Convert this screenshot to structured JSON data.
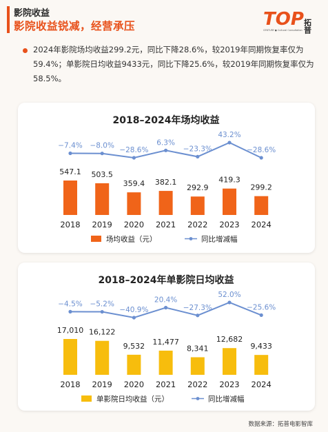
{
  "header": {
    "section": "影院收益",
    "headline": "影院收益锐减，经营承压"
  },
  "logo": {
    "wordmark": "TOP",
    "brand": "拓普",
    "tagline": "CENTURY ● Cultural Consultation",
    "colors": {
      "brand": "#e8511b",
      "dark": "#2b2b2b"
    }
  },
  "summary": "2024年影院场均收益299.2元，同比下降28.6%，较2019年同期恢复率仅为59.4%；单影院日均收益9433元，同比下降25.6%，较2019年同期恢复率仅为58.5%。",
  "chart_data": [
    {
      "type": "bar",
      "title": "2018–2024年场均收益",
      "categories": [
        "2018",
        "2019",
        "2020",
        "2021",
        "2022",
        "2023",
        "2024"
      ],
      "series": [
        {
          "name": "场均收益（元）",
          "kind": "bar",
          "color": "#f06419",
          "values": [
            547.1,
            503.5,
            359.4,
            382.1,
            292.9,
            419.3,
            299.2
          ],
          "labels": [
            "547.1",
            "503.5",
            "359.4",
            "382.1",
            "292.9",
            "419.3",
            "299.2"
          ]
        },
        {
          "name": "同比增减幅",
          "kind": "line",
          "color": "#6b8fd0",
          "values": [
            -7.4,
            -8.0,
            -28.6,
            6.3,
            -23.3,
            43.2,
            -28.6
          ],
          "labels": [
            "−7.4%",
            "−8.0%",
            "−28.6%",
            "6.3%",
            "−23.3%",
            "43.2%",
            "−28.6%"
          ]
        }
      ],
      "legend": "bottom-center"
    },
    {
      "type": "bar",
      "title": "2018–2024年单影院日均收益",
      "categories": [
        "2018",
        "2019",
        "2020",
        "2021",
        "2022",
        "2023",
        "2024"
      ],
      "series": [
        {
          "name": "单影院日均收益（元）",
          "kind": "bar",
          "color": "#f7bd0d",
          "values": [
            17010,
            16122,
            9532,
            11477,
            8341,
            12682,
            9433
          ],
          "labels": [
            "17,010",
            "16,122",
            "9,532",
            "11,477",
            "8,341",
            "12,682",
            "9,433"
          ]
        },
        {
          "name": "同比增减幅",
          "kind": "line",
          "color": "#6b8fd0",
          "values": [
            -4.5,
            -5.2,
            -40.9,
            20.4,
            -27.3,
            52.0,
            -25.6
          ],
          "labels": [
            "−4.5%",
            "−5.2%",
            "−40.9%",
            "20.4%",
            "−27.3%",
            "52.0%",
            "−25.6%"
          ]
        }
      ],
      "legend": "bottom-center"
    }
  ],
  "footer": {
    "source": "数据来源：拓普电影智库"
  }
}
